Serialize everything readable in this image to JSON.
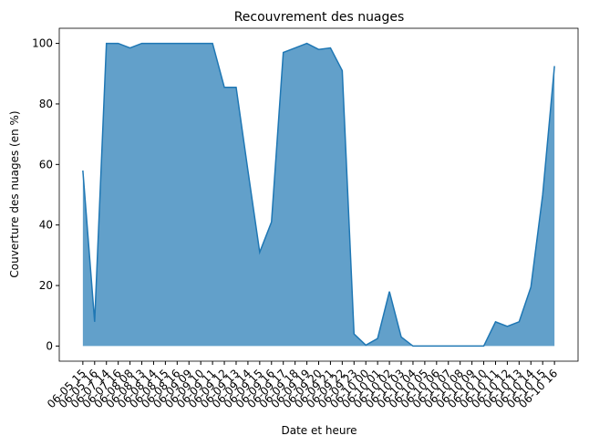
{
  "chart_data": {
    "type": "area",
    "title": "Recouvrement des nuages",
    "x_label": "Date et heure",
    "y_label": "Couverture des nuages (en %)",
    "categories": [
      "06-05 15",
      "06-05 16",
      "06-07 14",
      "06-07 16",
      "06-08 08",
      "06-08 13",
      "06-08 14",
      "06-08 15",
      "06-08 16",
      "06-09 09",
      "06-09 10",
      "06-09 11",
      "06-09 12",
      "06-09 13",
      "06-09 14",
      "06-09 15",
      "06-09 16",
      "06-09 17",
      "06-09 18",
      "06-09 19",
      "06-09 20",
      "06-09 21",
      "06-09 22",
      "06-09 23",
      "06-10 00",
      "06-10 01",
      "06-10 02",
      "06-10 03",
      "06-10 04",
      "06-10 05",
      "06-10 06",
      "06-10 07",
      "06-10 08",
      "06-10 09",
      "06-10 10",
      "06-10 11",
      "06-10 12",
      "06-10 13",
      "06-10 14",
      "06-10 15",
      "06-10 16"
    ],
    "values": [
      58,
      8,
      100,
      100,
      98.5,
      100,
      100,
      100,
      100,
      100,
      100,
      100,
      85.5,
      85.5,
      58,
      31,
      41,
      97,
      98.5,
      100,
      98,
      98.5,
      91,
      4,
      0.3,
      2.5,
      18,
      3,
      0,
      0,
      0,
      0,
      0,
      0,
      0,
      8,
      6.5,
      8,
      19.5,
      50,
      92.5
    ],
    "color": "#1f77b4",
    "fill_alpha": 0.7,
    "ylim": [
      -5,
      105
    ],
    "yticks": [
      0,
      20,
      40,
      60,
      80,
      100
    ]
  }
}
